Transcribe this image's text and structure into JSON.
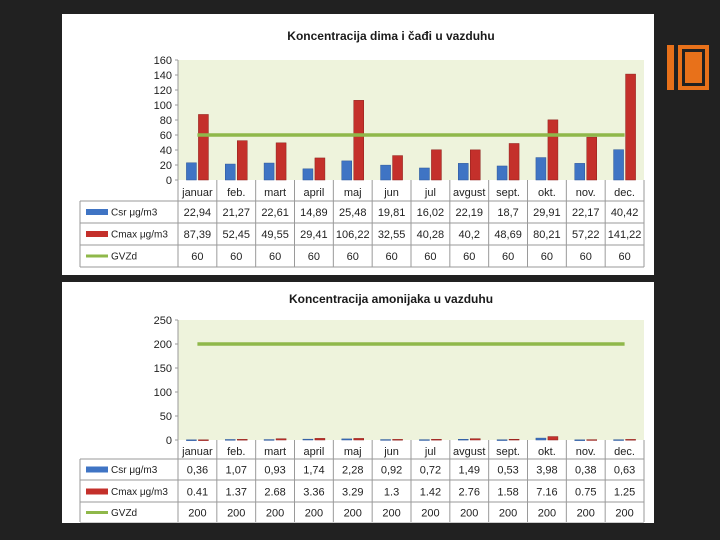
{
  "colors": {
    "background": "#212121",
    "accent": "#e8711a",
    "plot_area": "#eef3dc",
    "series_csr": "#3f74c4",
    "series_cmax": "#c4302b",
    "series_gvzd": "#8fb84a"
  },
  "chart_data": [
    {
      "type": "bar",
      "title": "Koncentracija dima i čađi u vazduhu",
      "categories": [
        "januar",
        "feb.",
        "mart",
        "april",
        "maj",
        "jun",
        "jul",
        "avgust",
        "sept.",
        "okt.",
        "nov.",
        "dec."
      ],
      "ylim": [
        0,
        160
      ],
      "yticks": [
        "160",
        "140",
        "120",
        "100",
        "80",
        "60",
        "40",
        "20",
        "0"
      ],
      "series": [
        {
          "name": "Csr μg/m3",
          "type": "bar",
          "values": [
            22.94,
            21.27,
            22.61,
            14.89,
            25.48,
            19.81,
            16.02,
            22.19,
            18.7,
            29.91,
            22.17,
            40.42
          ],
          "labels": [
            "22,94",
            "21,27",
            "22,61",
            "14,89",
            "25,48",
            "19,81",
            "16,02",
            "22,19",
            "18,7",
            "29,91",
            "22,17",
            "40,42"
          ]
        },
        {
          "name": "Cmax μg/m3",
          "type": "bar",
          "values": [
            87.39,
            52.45,
            49.55,
            29.41,
            106.22,
            32.55,
            40.28,
            40.2,
            48.69,
            80.21,
            57.22,
            141.22
          ],
          "labels": [
            "87,39",
            "52,45",
            "49,55",
            "29,41",
            "106,22",
            "32,55",
            "40,28",
            "40,2",
            "48,69",
            "80,21",
            "57,22",
            "141,22"
          ]
        },
        {
          "name": "GVZd",
          "type": "line",
          "values": [
            60,
            60,
            60,
            60,
            60,
            60,
            60,
            60,
            60,
            60,
            60,
            60
          ],
          "labels": [
            "60",
            "60",
            "60",
            "60",
            "60",
            "60",
            "60",
            "60",
            "60",
            "60",
            "60",
            "60"
          ]
        }
      ],
      "grid": false,
      "legend": "data table below chart"
    },
    {
      "type": "bar",
      "title": "Koncentracija amonijaka u vazduhu",
      "categories": [
        "januar",
        "feb.",
        "mart",
        "april",
        "maj",
        "jun",
        "jul",
        "avgust",
        "sept.",
        "okt.",
        "nov.",
        "dec."
      ],
      "ylim": [
        0,
        250
      ],
      "yticks": [
        "250",
        "200",
        "150",
        "100",
        "50",
        "0"
      ],
      "series": [
        {
          "name": "Csr μg/m3",
          "type": "bar",
          "values": [
            0.36,
            1.07,
            0.93,
            1.74,
            2.28,
            0.92,
            0.72,
            1.49,
            0.53,
            3.98,
            0.38,
            0.63
          ],
          "labels": [
            "0,36",
            "1,07",
            "0,93",
            "1,74",
            "2,28",
            "0,92",
            "0,72",
            "1,49",
            "0,53",
            "3,98",
            "0,38",
            "0,63"
          ]
        },
        {
          "name": "Cmax μg/m3",
          "type": "bar",
          "values": [
            0.41,
            1.37,
            2.68,
            3.36,
            3.29,
            1.3,
            1.42,
            2.76,
            1.58,
            7.16,
            0.75,
            1.25
          ],
          "labels": [
            "0.41",
            "1.37",
            "2.68",
            "3.36",
            "3.29",
            "1.3",
            "1.42",
            "2.76",
            "1.58",
            "7.16",
            "0.75",
            "1.25"
          ]
        },
        {
          "name": "GVZd",
          "type": "line",
          "values": [
            200,
            200,
            200,
            200,
            200,
            200,
            200,
            200,
            200,
            200,
            200,
            200
          ],
          "labels": [
            "200",
            "200",
            "200",
            "200",
            "200",
            "200",
            "200",
            "200",
            "200",
            "200",
            "200",
            "200"
          ]
        }
      ],
      "grid": false,
      "legend": "data table below chart"
    }
  ]
}
